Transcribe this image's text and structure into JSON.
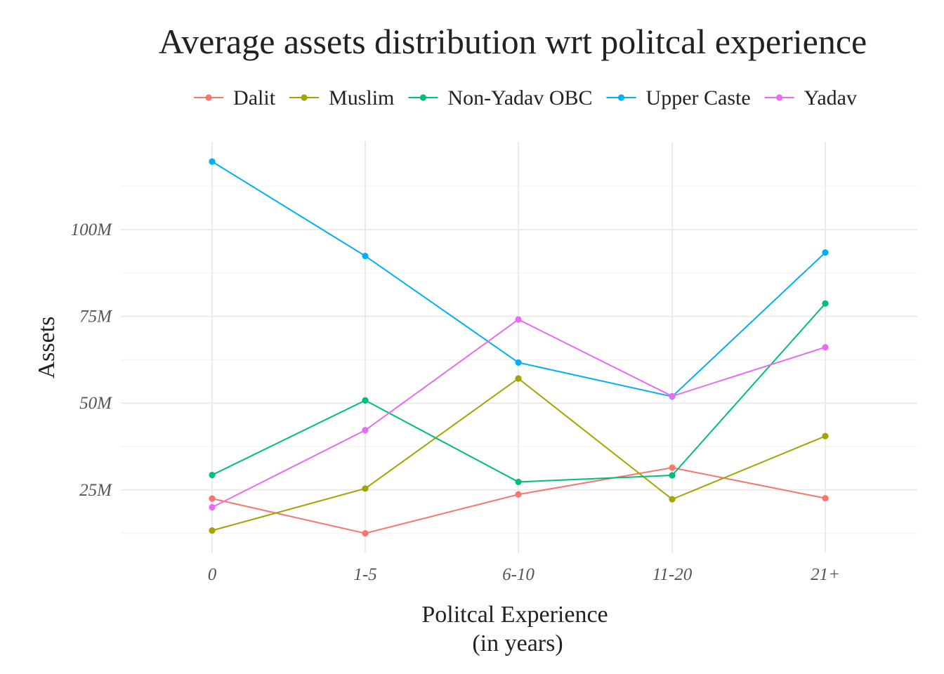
{
  "chart_data": {
    "type": "line",
    "title": "Average assets distribution wrt politcal experience",
    "xlabel_lines": [
      "Politcal Experience",
      "(in years)"
    ],
    "ylabel": "Assets",
    "categories": [
      "0",
      "1-5",
      "6-10",
      "11-20",
      "21+"
    ],
    "y_ticks": [
      {
        "value": 25,
        "label": "25M"
      },
      {
        "value": 50,
        "label": "50M"
      },
      {
        "value": 75,
        "label": "75M"
      },
      {
        "value": 100,
        "label": "100M"
      }
    ],
    "ylim": [
      7.5,
      120
    ],
    "grid": true,
    "legend_position": "top",
    "series": [
      {
        "name": "Dalit",
        "color": "#F8766D",
        "values": [
          22.5,
          12.5,
          23.7,
          31.4,
          22.6
        ]
      },
      {
        "name": "Muslim",
        "color": "#A3A500",
        "values": [
          13.3,
          25.4,
          57.1,
          22.3,
          40.5
        ]
      },
      {
        "name": "Non-Yadav OBC",
        "color": "#00BF7D",
        "values": [
          29.3,
          50.8,
          27.3,
          29.2,
          78.7
        ]
      },
      {
        "name": "Upper Caste",
        "color": "#00B0F6",
        "values": [
          119.6,
          92.4,
          61.7,
          51.9,
          93.4
        ]
      },
      {
        "name": "Yadav",
        "color": "#E76BF3",
        "values": [
          20.0,
          42.2,
          74.1,
          52.0,
          66.1
        ]
      }
    ]
  }
}
